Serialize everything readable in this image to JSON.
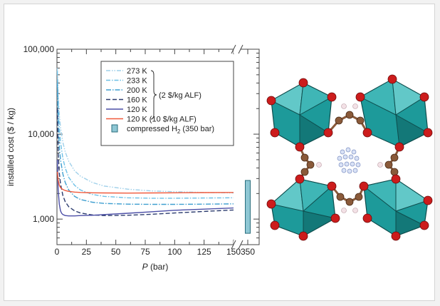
{
  "chart_data": {
    "type": "line",
    "xlabel_italic": "P",
    "xlabel_unit": "(bar)",
    "ylabel": "installed cost ($ / kg)",
    "y_scale": "log",
    "ylim": [
      500,
      100000
    ],
    "xlim": [
      0,
      150
    ],
    "x_ticks": [
      "0",
      "25",
      "50",
      "75",
      "100",
      "125",
      "150"
    ],
    "x_break_tick": "350",
    "y_ticks": [
      "1,000",
      "10,000",
      "100,000"
    ],
    "legend_position": "upper-center",
    "bracket_label": "(2 $/kg ALF)",
    "series": [
      {
        "name": "273 K",
        "color": "#9fd0ea",
        "dash": "6 2 1.5 2 1.5 2",
        "x": [
          0.3,
          1,
          2,
          3,
          5,
          7,
          10,
          15,
          20,
          30,
          40,
          60,
          80,
          100,
          125,
          150
        ],
        "y": [
          60000,
          30000,
          17000,
          12000,
          8000,
          6200,
          4800,
          3700,
          3200,
          2700,
          2450,
          2250,
          2150,
          2100,
          2060,
          2030
        ]
      },
      {
        "name": "233 K",
        "color": "#6cc0e6",
        "dash": "6 2 1.5 2",
        "x": [
          0.3,
          1,
          2,
          3,
          5,
          7,
          10,
          15,
          20,
          30,
          40,
          60,
          80,
          100,
          125,
          150
        ],
        "y": [
          55000,
          22000,
          12000,
          8000,
          5200,
          4000,
          3100,
          2500,
          2200,
          1950,
          1850,
          1780,
          1760,
          1760,
          1770,
          1780
        ]
      },
      {
        "name": "200 K",
        "color": "#3f9fd0",
        "dash": "7 2 1.5 2",
        "x": [
          0.3,
          1,
          2,
          3,
          5,
          7,
          10,
          15,
          20,
          30,
          40,
          60,
          80,
          100,
          125,
          150
        ],
        "y": [
          40000,
          13000,
          7000,
          5000,
          3400,
          2700,
          2200,
          1850,
          1700,
          1580,
          1530,
          1500,
          1490,
          1490,
          1500,
          1510
        ]
      },
      {
        "name": "160 K",
        "color": "#2b3b6e",
        "dash": "6 3",
        "x": [
          0.3,
          1,
          2,
          3,
          5,
          7,
          10,
          15,
          20,
          30,
          40,
          60,
          80,
          100,
          125,
          150
        ],
        "y": [
          20000,
          6000,
          3500,
          2600,
          1900,
          1600,
          1400,
          1250,
          1180,
          1120,
          1100,
          1110,
          1140,
          1180,
          1230,
          1280
        ]
      },
      {
        "name": "120 K",
        "color": "#4b4ea6",
        "dash": "",
        "x": [
          0.3,
          1,
          2,
          3,
          4,
          5,
          7,
          10,
          15,
          20,
          30,
          40,
          60,
          80,
          100,
          125,
          150
        ],
        "y": [
          5000,
          2200,
          1500,
          1250,
          1170,
          1130,
          1100,
          1090,
          1090,
          1100,
          1110,
          1130,
          1170,
          1220,
          1270,
          1310,
          1350
        ]
      },
      {
        "name": "120 K (10 $/kg ALF)",
        "color": "#f05a3c",
        "dash": "",
        "x": [
          0.3,
          1,
          2,
          3,
          5,
          7,
          10,
          15,
          20,
          30,
          40,
          60,
          80,
          100,
          125,
          150
        ],
        "y": [
          3600,
          2900,
          2500,
          2350,
          2230,
          2170,
          2120,
          2080,
          2060,
          2040,
          2030,
          2025,
          2030,
          2040,
          2050,
          2060
        ]
      }
    ],
    "bar": {
      "name": "compressed H",
      "name_sub": "2",
      "name_suffix": "(350 bar)",
      "color": "#8ec7d4",
      "edge": "#2a6e7d",
      "x": 350,
      "y_low": 680,
      "y_high": 2850
    }
  }
}
